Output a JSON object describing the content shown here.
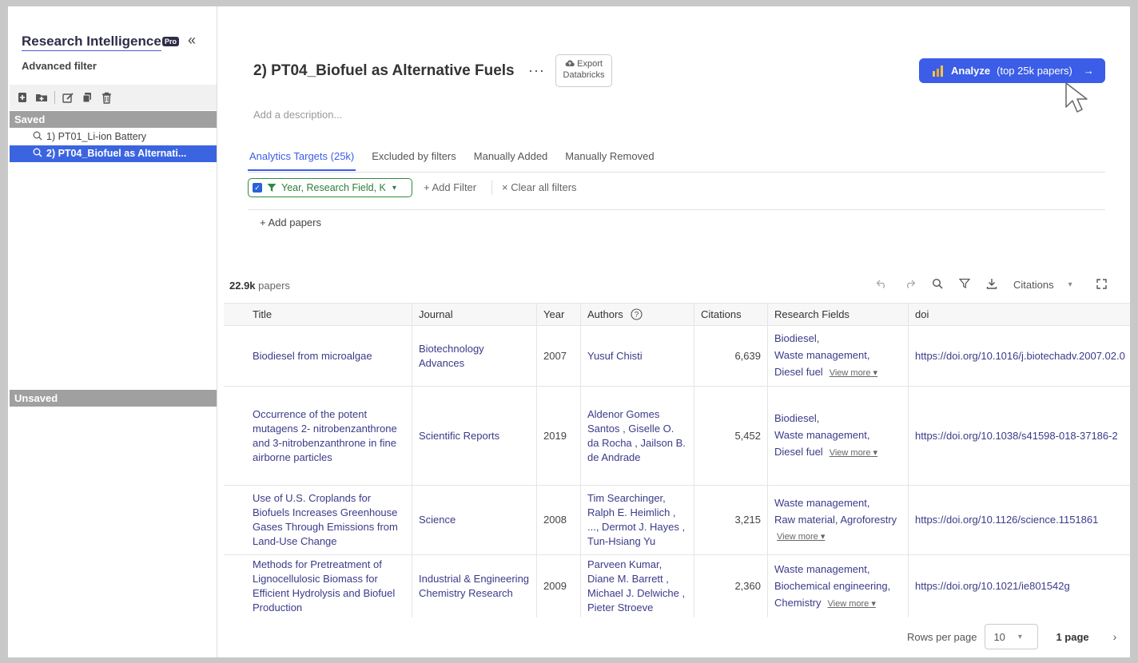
{
  "sidebar": {
    "title": "Research Intelligence",
    "badge": "Pro",
    "collapse_icon": "chevrons-left-icon",
    "subtitle": "Advanced filter",
    "toolbar_icons": [
      "new-file-icon",
      "new-folder-icon",
      "edit-icon",
      "copy-icon",
      "trash-icon"
    ],
    "saved_label": "Saved",
    "saved_items": [
      {
        "label": "1) PT01_Li-ion Battery"
      },
      {
        "label": "2) PT04_Biofuel as Alternati..."
      }
    ],
    "unsaved_label": "Unsaved"
  },
  "header": {
    "title": "2) PT04_Biofuel as Alternative Fuels",
    "more": "···",
    "export_line1": "Export",
    "export_line2": "Databricks",
    "analyze_label": "Analyze",
    "analyze_sub": "(top 25k papers)",
    "analyze_arrow": "→",
    "description_placeholder": "Add a description..."
  },
  "tabs": [
    {
      "label": "Analytics Targets  (25k)",
      "active": true
    },
    {
      "label": "Excluded by filters"
    },
    {
      "label": "Manually Added"
    },
    {
      "label": "Manually Removed"
    }
  ],
  "filters": {
    "chip_label": "Year, Research Field, K",
    "add_filter": "+ Add Filter",
    "clear_all": "× Clear all filters",
    "add_papers": "+   Add papers"
  },
  "results": {
    "count": "22.9k",
    "count_suffix": " papers",
    "sort_label": "Citations"
  },
  "table": {
    "columns": [
      "Title",
      "Journal",
      "Year",
      "Authors",
      "Citations",
      "Research Fields",
      "doi"
    ],
    "rows": [
      {
        "title": "Biodiesel from microalgae",
        "journal": "Biotechnology Advances",
        "year": "2007",
        "authors": "Yusuf Chisti",
        "citations": "6,639",
        "fields": [
          "Biodiesel,",
          "Waste management,",
          "Diesel fuel"
        ],
        "view_more": "View more",
        "doi": "https://doi.org/10.1016/j.biotechadv.2007.02.0"
      },
      {
        "title": "Occurrence of the potent mutagens 2- nitrobenzanthrone and 3-nitrobenzanthrone in fine airborne particles",
        "journal": "Scientific Reports",
        "year": "2019",
        "authors": "Aldenor Gomes Santos , Giselle O. da Rocha , Jailson B. de Andrade",
        "citations": "5,452",
        "fields": [
          "Biodiesel,",
          "Waste management,",
          "Diesel fuel"
        ],
        "view_more": "View more",
        "doi": "https://doi.org/10.1038/s41598-018-37186-2"
      },
      {
        "title": "Use of U.S. Croplands for Biofuels Increases Greenhouse Gases Through Emissions from Land-Use Change",
        "journal": "Science",
        "year": "2008",
        "authors": "Tim Searchinger, Ralph E. Heimlich , ..., Dermot J. Hayes , Tun-Hsiang Yu",
        "citations": "3,215",
        "fields": [
          "Waste management,",
          "Raw material, Agroforestry"
        ],
        "view_more": "View more",
        "doi": "https://doi.org/10.1126/science.1151861"
      },
      {
        "title": "Methods for Pretreatment of Lignocellulosic Biomass for Efficient Hydrolysis and Biofuel Production",
        "journal": "Industrial & Engineering Chemistry Research",
        "year": "2009",
        "authors": "Parveen Kumar, Diane M. Barrett , Michael J. Delwiche , Pieter Stroeve",
        "citations": "2,360",
        "fields": [
          "Waste management,",
          "Biochemical engineering,",
          "Chemistry"
        ],
        "view_more": "View more",
        "doi": "https://doi.org/10.1021/ie801542g"
      }
    ]
  },
  "pagination": {
    "rows_per_page_label": "Rows per page",
    "rows_per_page_value": "10",
    "page_label": "1 page"
  },
  "colors": {
    "accent": "#3b5de7",
    "link": "#3b3b8a",
    "filter_green": "#2e8b3e",
    "saved_header": "#a0a0a0"
  }
}
